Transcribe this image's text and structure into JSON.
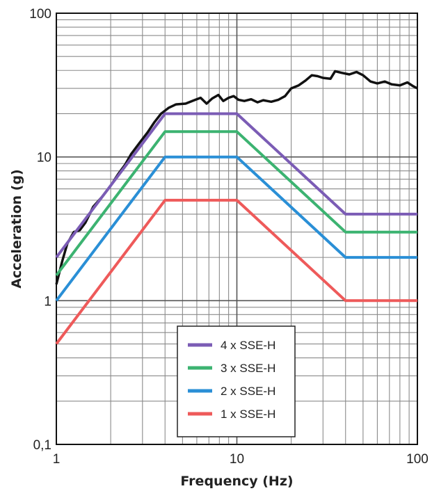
{
  "chart_data": {
    "type": "line",
    "xlabel": "Frequency (Hz)",
    "ylabel": "Acceleration (g)",
    "x_scale": "log",
    "y_scale": "log",
    "xlim": [
      1,
      100
    ],
    "ylim": [
      0.1,
      100
    ],
    "x_ticks": [
      {
        "value": 1,
        "label": "1"
      },
      {
        "value": 10,
        "label": "10"
      },
      {
        "value": 100,
        "label": "100"
      }
    ],
    "y_ticks": [
      {
        "value": 0.1,
        "label": "0,1"
      },
      {
        "value": 1,
        "label": "1"
      },
      {
        "value": 10,
        "label": "10"
      },
      {
        "value": 100,
        "label": "100"
      }
    ],
    "grid": true,
    "legend_position": "bottom-center",
    "series": [
      {
        "name": "",
        "color": "#111111",
        "points": [
          [
            1,
            1.3
          ],
          [
            1.08,
            1.9
          ],
          [
            1.15,
            2.5
          ],
          [
            1.25,
            3.0
          ],
          [
            1.35,
            3.1
          ],
          [
            1.45,
            3.5
          ],
          [
            1.6,
            4.5
          ],
          [
            1.8,
            5.3
          ],
          [
            2.0,
            6.3
          ],
          [
            2.2,
            7.6
          ],
          [
            2.4,
            8.8
          ],
          [
            2.6,
            10.5
          ],
          [
            2.9,
            12.6
          ],
          [
            3.2,
            14.8
          ],
          [
            3.5,
            17.5
          ],
          [
            3.8,
            20.0
          ],
          [
            4.2,
            22.0
          ],
          [
            4.6,
            23.2
          ],
          [
            5.2,
            23.5
          ],
          [
            5.8,
            24.8
          ],
          [
            6.3,
            25.8
          ],
          [
            6.8,
            23.5
          ],
          [
            7.3,
            25.5
          ],
          [
            7.9,
            27.0
          ],
          [
            8.4,
            24.5
          ],
          [
            9.0,
            25.8
          ],
          [
            9.6,
            26.5
          ],
          [
            10.2,
            25.0
          ],
          [
            11.0,
            24.5
          ],
          [
            12.0,
            25.2
          ],
          [
            13.0,
            24.0
          ],
          [
            14.0,
            24.8
          ],
          [
            15.5,
            24.2
          ],
          [
            17.0,
            25.0
          ],
          [
            18.5,
            26.5
          ],
          [
            20.0,
            30.0
          ],
          [
            22.0,
            31.5
          ],
          [
            24.0,
            34.0
          ],
          [
            26.0,
            37.0
          ],
          [
            28.0,
            36.5
          ],
          [
            30.0,
            35.5
          ],
          [
            33.0,
            35.0
          ],
          [
            35.0,
            39.5
          ],
          [
            38.0,
            38.5
          ],
          [
            42.0,
            37.5
          ],
          [
            46.0,
            39.0
          ],
          [
            50.0,
            37.0
          ],
          [
            55.0,
            33.5
          ],
          [
            60.0,
            32.5
          ],
          [
            66.0,
            33.5
          ],
          [
            72.0,
            32.0
          ],
          [
            80.0,
            31.5
          ],
          [
            88.0,
            33.0
          ],
          [
            95.0,
            31.0
          ],
          [
            100.0,
            30.0
          ]
        ]
      },
      {
        "name": "4 x SSE-H",
        "color": "#7b5cb5",
        "points": [
          [
            1,
            2.0
          ],
          [
            4,
            20
          ],
          [
            10,
            20
          ],
          [
            40,
            4
          ],
          [
            100,
            4
          ]
        ]
      },
      {
        "name": "3 x SSE-H",
        "color": "#3cb371",
        "points": [
          [
            1,
            1.5
          ],
          [
            4,
            15
          ],
          [
            10,
            15
          ],
          [
            40,
            3
          ],
          [
            100,
            3
          ]
        ]
      },
      {
        "name": "2 x SSE-H",
        "color": "#2a8fd6",
        "points": [
          [
            1,
            1.0
          ],
          [
            4,
            10
          ],
          [
            10,
            10
          ],
          [
            40,
            2
          ],
          [
            100,
            2
          ]
        ]
      },
      {
        "name": "1 x SSE-H",
        "color": "#ee5a5a",
        "points": [
          [
            1,
            0.5
          ],
          [
            4,
            5
          ],
          [
            10,
            5
          ],
          [
            40,
            1
          ],
          [
            100,
            1
          ]
        ]
      }
    ],
    "legend": [
      {
        "label": "4 x SSE-H",
        "color": "#7b5cb5"
      },
      {
        "label": "3 x SSE-H",
        "color": "#3cb371"
      },
      {
        "label": "2 x SSE-H",
        "color": "#2a8fd6"
      },
      {
        "label": "1 x SSE-H",
        "color": "#ee5a5a"
      }
    ]
  }
}
